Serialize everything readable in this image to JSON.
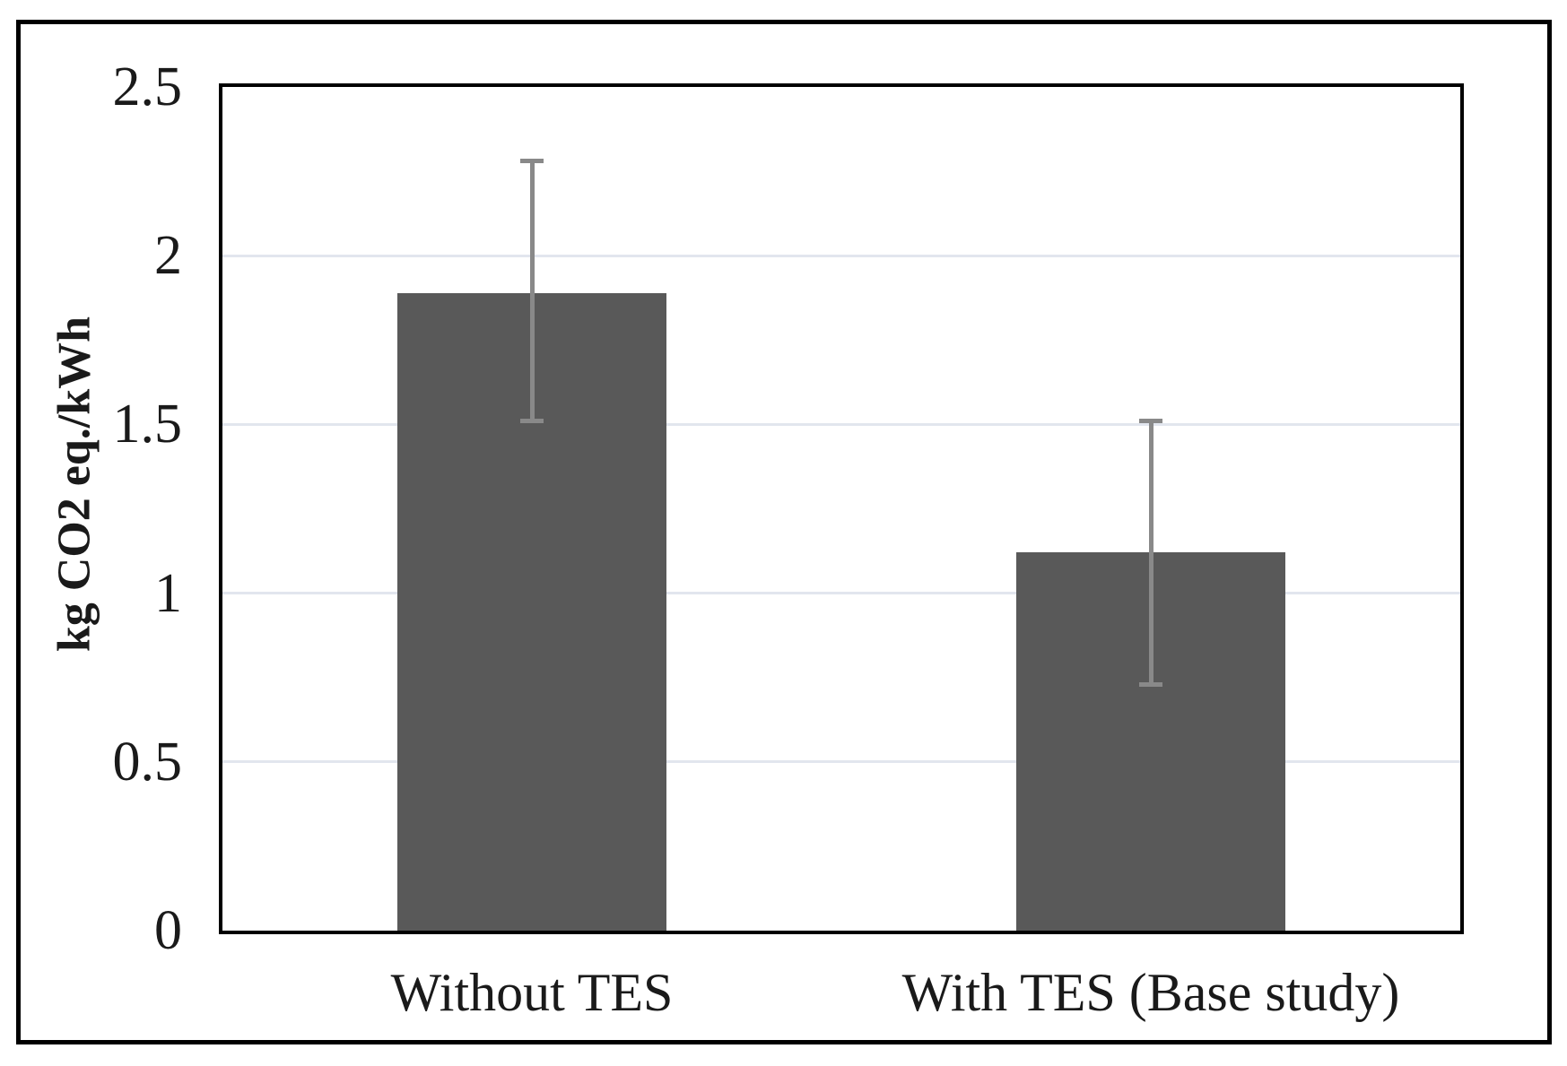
{
  "chart_data": {
    "type": "bar",
    "title": "",
    "xlabel": "",
    "ylabel": "kg CO2 eq./kWh",
    "ylim": [
      0,
      2.5
    ],
    "grid": true,
    "legend": false,
    "yticks": [
      {
        "value": 0,
        "label": "0"
      },
      {
        "value": 0.5,
        "label": "0.5"
      },
      {
        "value": 1,
        "label": "1"
      },
      {
        "value": 1.5,
        "label": "1.5"
      },
      {
        "value": 2,
        "label": "2"
      },
      {
        "value": 2.5,
        "label": "2.5"
      }
    ],
    "categories": [
      "Without TES",
      "With TES (Base study)"
    ],
    "values": [
      1.89,
      1.12
    ],
    "error_bars": {
      "high": [
        2.28,
        1.51
      ],
      "low": [
        1.51,
        0.73
      ]
    },
    "colors": {
      "bar": "#595959",
      "error": "#898989",
      "gridline": "#e2e6ee",
      "axis": "#000000",
      "text": "#1a1a1a",
      "background": "#ffffff"
    }
  }
}
